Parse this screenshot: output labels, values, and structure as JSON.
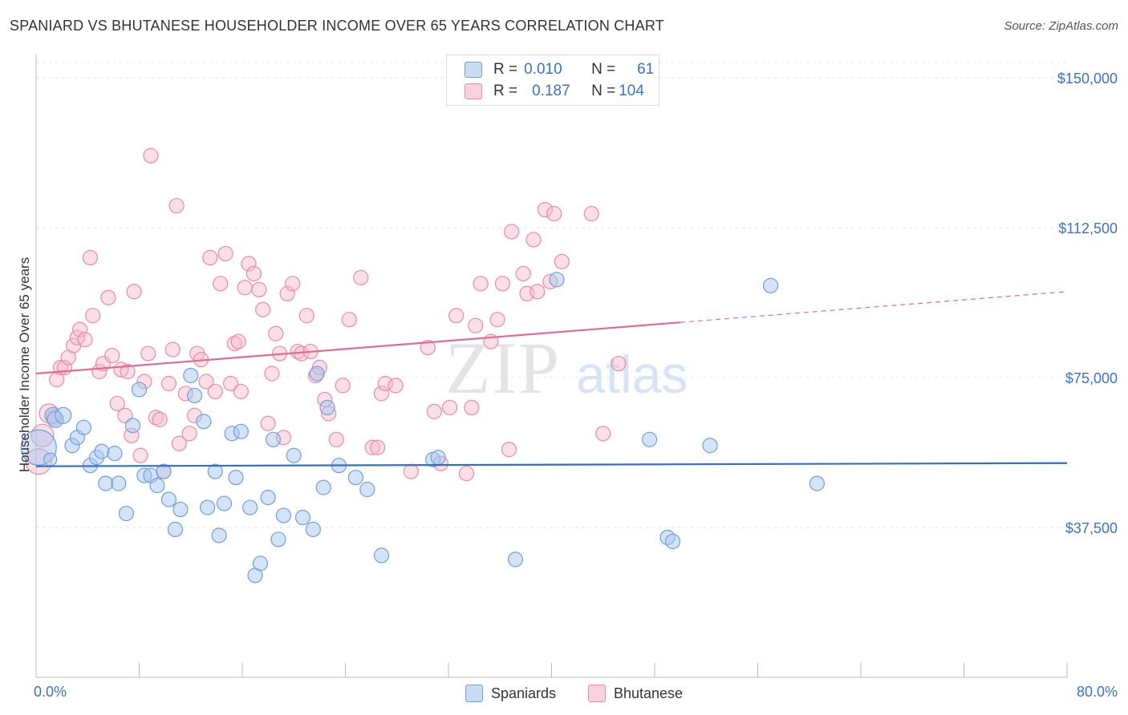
{
  "title": "SPANIARD VS BHUTANESE HOUSEHOLDER INCOME OVER 65 YEARS CORRELATION CHART",
  "source": "Source: ZipAtlas.com",
  "watermark": {
    "zip": "ZIP",
    "atlas": "atlas"
  },
  "legend": {
    "rows": [
      {
        "r_label": "R =",
        "r_value": "0.010",
        "n_label": "N =",
        "n_value": "61",
        "color": "#a9c8ee",
        "border": "#6f9fdc"
      },
      {
        "r_label": "R =",
        "r_value": "0.187",
        "n_label": "N =",
        "n_value": "104",
        "color": "#f7b8ca",
        "border": "#e98aa7"
      }
    ]
  },
  "bottom_legend": {
    "spaniards": "Spaniards",
    "bhutanese": "Bhutanese"
  },
  "colors": {
    "spaniards_fill": "#a9c8ee",
    "spaniards_stroke": "#6f9fdc",
    "spaniards_line": "#2f6fc4",
    "bhutanese_fill": "#f7b8ca",
    "bhutanese_stroke": "#e98aa7",
    "bhutanese_line": "#e06b93",
    "axis_label": "#3a72c8",
    "grid": "#e6e6e6"
  },
  "chart_data": {
    "type": "scatter",
    "title": "SPANIARD VS BHUTANESE HOUSEHOLDER INCOME OVER 65 YEARS CORRELATION CHART",
    "xlabel": "",
    "ylabel": "Householder Income Over 65 years",
    "xlim": [
      0,
      80
    ],
    "ylim": [
      0,
      155000
    ],
    "x_tick_labels": [
      "0.0%",
      "80.0%"
    ],
    "y_ticks": [
      37500,
      75000,
      112500,
      150000
    ],
    "y_tick_labels": [
      "$37,500",
      "$75,000",
      "$112,500",
      "$150,000"
    ],
    "grid": true,
    "legend_position": "top-center",
    "series": [
      {
        "name": "Spaniards",
        "trend": {
          "x": [
            0,
            80
          ],
          "y": [
            52800,
            53600
          ],
          "dashed_from": null
        },
        "points": [
          [
            0.2,
            57500,
            22
          ],
          [
            1.3,
            65500,
            10
          ],
          [
            1.5,
            64500,
            10
          ],
          [
            2.1,
            65500,
            10
          ],
          [
            2.8,
            58000,
            9
          ],
          [
            3.2,
            60000,
            9
          ],
          [
            3.7,
            62500,
            9
          ],
          [
            4.2,
            53000,
            9
          ],
          [
            4.7,
            55000,
            9
          ],
          [
            5.1,
            56500,
            9
          ],
          [
            5.4,
            48500,
            9
          ],
          [
            6.1,
            56000,
            9
          ],
          [
            6.4,
            48500,
            9
          ],
          [
            7.0,
            41000,
            9
          ],
          [
            7.5,
            63000,
            9
          ],
          [
            8.0,
            72000,
            9
          ],
          [
            8.4,
            50500,
            9
          ],
          [
            8.9,
            50500,
            9
          ],
          [
            9.4,
            48000,
            9
          ],
          [
            9.9,
            51500,
            9
          ],
          [
            10.3,
            44500,
            9
          ],
          [
            10.8,
            37000,
            9
          ],
          [
            11.2,
            42000,
            9
          ],
          [
            12.0,
            75500,
            9
          ],
          [
            12.3,
            70500,
            9
          ],
          [
            13.0,
            64000,
            9
          ],
          [
            13.3,
            42500,
            9
          ],
          [
            13.9,
            51500,
            9
          ],
          [
            14.2,
            35500,
            9
          ],
          [
            14.6,
            43500,
            9
          ],
          [
            15.2,
            61000,
            9
          ],
          [
            15.5,
            50000,
            9
          ],
          [
            15.9,
            61500,
            9
          ],
          [
            16.6,
            42500,
            9
          ],
          [
            17.0,
            25500,
            9
          ],
          [
            17.4,
            28500,
            9
          ],
          [
            18.0,
            45000,
            9
          ],
          [
            18.4,
            59500,
            9
          ],
          [
            18.8,
            34500,
            9
          ],
          [
            19.2,
            40500,
            9
          ],
          [
            20.0,
            55500,
            9
          ],
          [
            20.7,
            40000,
            9
          ],
          [
            21.5,
            37000,
            9
          ],
          [
            21.8,
            76000,
            9
          ],
          [
            22.3,
            47500,
            9
          ],
          [
            22.6,
            67500,
            9
          ],
          [
            23.5,
            53000,
            9
          ],
          [
            24.8,
            50000,
            9
          ],
          [
            25.7,
            47000,
            9
          ],
          [
            26.8,
            30500,
            9
          ],
          [
            30.8,
            54500,
            9
          ],
          [
            31.2,
            55000,
            9
          ],
          [
            37.2,
            29500,
            9
          ],
          [
            40.4,
            99500,
            9
          ],
          [
            47.6,
            59500,
            9
          ],
          [
            49.0,
            35000,
            9
          ],
          [
            49.4,
            34000,
            9
          ],
          [
            52.3,
            58000,
            9
          ],
          [
            57.0,
            98000,
            9
          ],
          [
            60.6,
            48500,
            9
          ],
          [
            1.1,
            54500,
            8
          ]
        ]
      },
      {
        "name": "Bhutanese",
        "trend": {
          "x": [
            0,
            50,
            80
          ],
          "y": [
            76000,
            88800,
            96500
          ],
          "dashed_from": 50
        },
        "points": [
          [
            0.2,
            54000,
            16
          ],
          [
            0.5,
            60500,
            14
          ],
          [
            1.0,
            66000,
            12
          ],
          [
            1.4,
            65000,
            10
          ],
          [
            1.6,
            74500,
            9
          ],
          [
            1.9,
            77500,
            9
          ],
          [
            2.2,
            77500,
            9
          ],
          [
            2.5,
            80000,
            9
          ],
          [
            2.9,
            83000,
            9
          ],
          [
            3.2,
            85000,
            9
          ],
          [
            3.4,
            87000,
            9
          ],
          [
            3.8,
            84500,
            9
          ],
          [
            4.2,
            105000,
            9
          ],
          [
            4.4,
            90500,
            9
          ],
          [
            4.9,
            76500,
            9
          ],
          [
            5.2,
            78500,
            9
          ],
          [
            5.6,
            95000,
            9
          ],
          [
            5.9,
            80500,
            9
          ],
          [
            6.3,
            68500,
            9
          ],
          [
            6.6,
            77000,
            9
          ],
          [
            6.9,
            65500,
            9
          ],
          [
            7.1,
            76500,
            9
          ],
          [
            7.4,
            60500,
            9
          ],
          [
            7.6,
            96500,
            9
          ],
          [
            8.1,
            55500,
            9
          ],
          [
            8.4,
            74000,
            9
          ],
          [
            8.7,
            81000,
            9
          ],
          [
            8.9,
            130500,
            9
          ],
          [
            9.3,
            65000,
            9
          ],
          [
            9.6,
            64500,
            9
          ],
          [
            9.9,
            51500,
            9
          ],
          [
            10.3,
            73500,
            9
          ],
          [
            10.6,
            82000,
            9
          ],
          [
            10.9,
            118000,
            9
          ],
          [
            11.1,
            58500,
            9
          ],
          [
            11.6,
            71000,
            9
          ],
          [
            11.9,
            61000,
            9
          ],
          [
            12.3,
            65500,
            9
          ],
          [
            12.5,
            81000,
            9
          ],
          [
            12.8,
            79500,
            9
          ],
          [
            13.2,
            74000,
            9
          ],
          [
            13.5,
            105000,
            9
          ],
          [
            13.9,
            71500,
            9
          ],
          [
            14.3,
            98500,
            9
          ],
          [
            14.7,
            106000,
            9
          ],
          [
            15.1,
            73500,
            9
          ],
          [
            15.4,
            83500,
            9
          ],
          [
            15.7,
            84000,
            9
          ],
          [
            15.9,
            71500,
            9
          ],
          [
            16.2,
            97500,
            9
          ],
          [
            16.5,
            103500,
            9
          ],
          [
            16.9,
            101000,
            9
          ],
          [
            17.3,
            97000,
            9
          ],
          [
            17.6,
            92000,
            9
          ],
          [
            18.0,
            63500,
            9
          ],
          [
            18.3,
            76000,
            9
          ],
          [
            18.6,
            86000,
            9
          ],
          [
            18.9,
            81000,
            9
          ],
          [
            19.2,
            60000,
            9
          ],
          [
            19.5,
            96000,
            9
          ],
          [
            19.9,
            98500,
            9
          ],
          [
            20.3,
            81500,
            9
          ],
          [
            20.6,
            81000,
            9
          ],
          [
            21.0,
            90500,
            9
          ],
          [
            21.3,
            81500,
            9
          ],
          [
            21.7,
            75500,
            9
          ],
          [
            22.0,
            77500,
            9
          ],
          [
            22.4,
            69500,
            9
          ],
          [
            22.7,
            66000,
            9
          ],
          [
            23.3,
            59500,
            9
          ],
          [
            23.8,
            73000,
            9
          ],
          [
            24.3,
            89500,
            9
          ],
          [
            25.2,
            100000,
            9
          ],
          [
            26.1,
            57500,
            9
          ],
          [
            26.5,
            57500,
            9
          ],
          [
            26.8,
            71000,
            9
          ],
          [
            27.1,
            73500,
            9
          ],
          [
            27.9,
            73000,
            9
          ],
          [
            29.1,
            51500,
            9
          ],
          [
            30.4,
            82500,
            9
          ],
          [
            30.9,
            66500,
            9
          ],
          [
            31.4,
            53500,
            9
          ],
          [
            32.1,
            67500,
            9
          ],
          [
            32.6,
            90500,
            9
          ],
          [
            33.4,
            51000,
            9
          ],
          [
            33.8,
            67500,
            9
          ],
          [
            34.1,
            88000,
            9
          ],
          [
            34.5,
            98500,
            9
          ],
          [
            35.3,
            84000,
            9
          ],
          [
            35.8,
            89500,
            9
          ],
          [
            36.2,
            98500,
            9
          ],
          [
            36.7,
            57000,
            9
          ],
          [
            36.9,
            111500,
            9
          ],
          [
            37.8,
            101000,
            9
          ],
          [
            38.1,
            96000,
            9
          ],
          [
            38.6,
            109500,
            9
          ],
          [
            38.9,
            96500,
            9
          ],
          [
            39.5,
            117000,
            9
          ],
          [
            39.9,
            99000,
            9
          ],
          [
            40.2,
            116000,
            9
          ],
          [
            40.8,
            104000,
            9
          ],
          [
            43.1,
            116000,
            9
          ],
          [
            44.0,
            61000,
            9
          ],
          [
            45.2,
            78500,
            9
          ]
        ]
      }
    ]
  }
}
